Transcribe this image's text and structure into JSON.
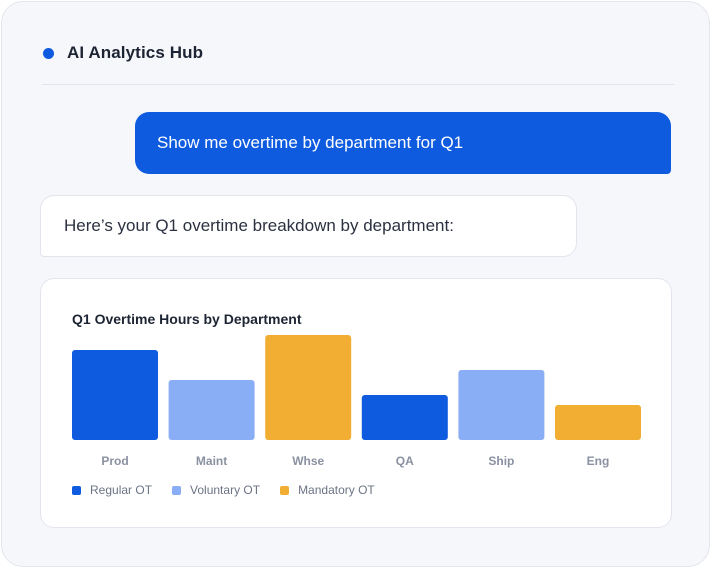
{
  "header": {
    "title": "AI Analytics Hub"
  },
  "conversation": {
    "user_message": "Show me overtime by department for Q1",
    "assistant_message": "Here’s your Q1 overtime breakdown by department:"
  },
  "colors": {
    "accent": "#0f5be0",
    "regular": "#0f5be0",
    "voluntary": "#8aaef5",
    "mandatory": "#f2ae33"
  },
  "chart_data": {
    "type": "bar",
    "title": "Q1 Overtime Hours by Department",
    "categories": [
      "Prod",
      "Maint",
      "Whse",
      "QA",
      "Ship",
      "Eng"
    ],
    "values": [
      90,
      60,
      105,
      45,
      70,
      35
    ],
    "bar_types": [
      "Regular OT",
      "Voluntary OT",
      "Mandatory OT",
      "Regular OT",
      "Voluntary OT",
      "Mandatory OT"
    ],
    "ylim": [
      0,
      105
    ],
    "grid": false,
    "legend": {
      "position": "bottom-left",
      "entries": [
        {
          "label": "Regular OT",
          "color_key": "regular"
        },
        {
          "label": "Voluntary OT",
          "color_key": "voluntary"
        },
        {
          "label": "Mandatory OT",
          "color_key": "mandatory"
        }
      ]
    }
  }
}
